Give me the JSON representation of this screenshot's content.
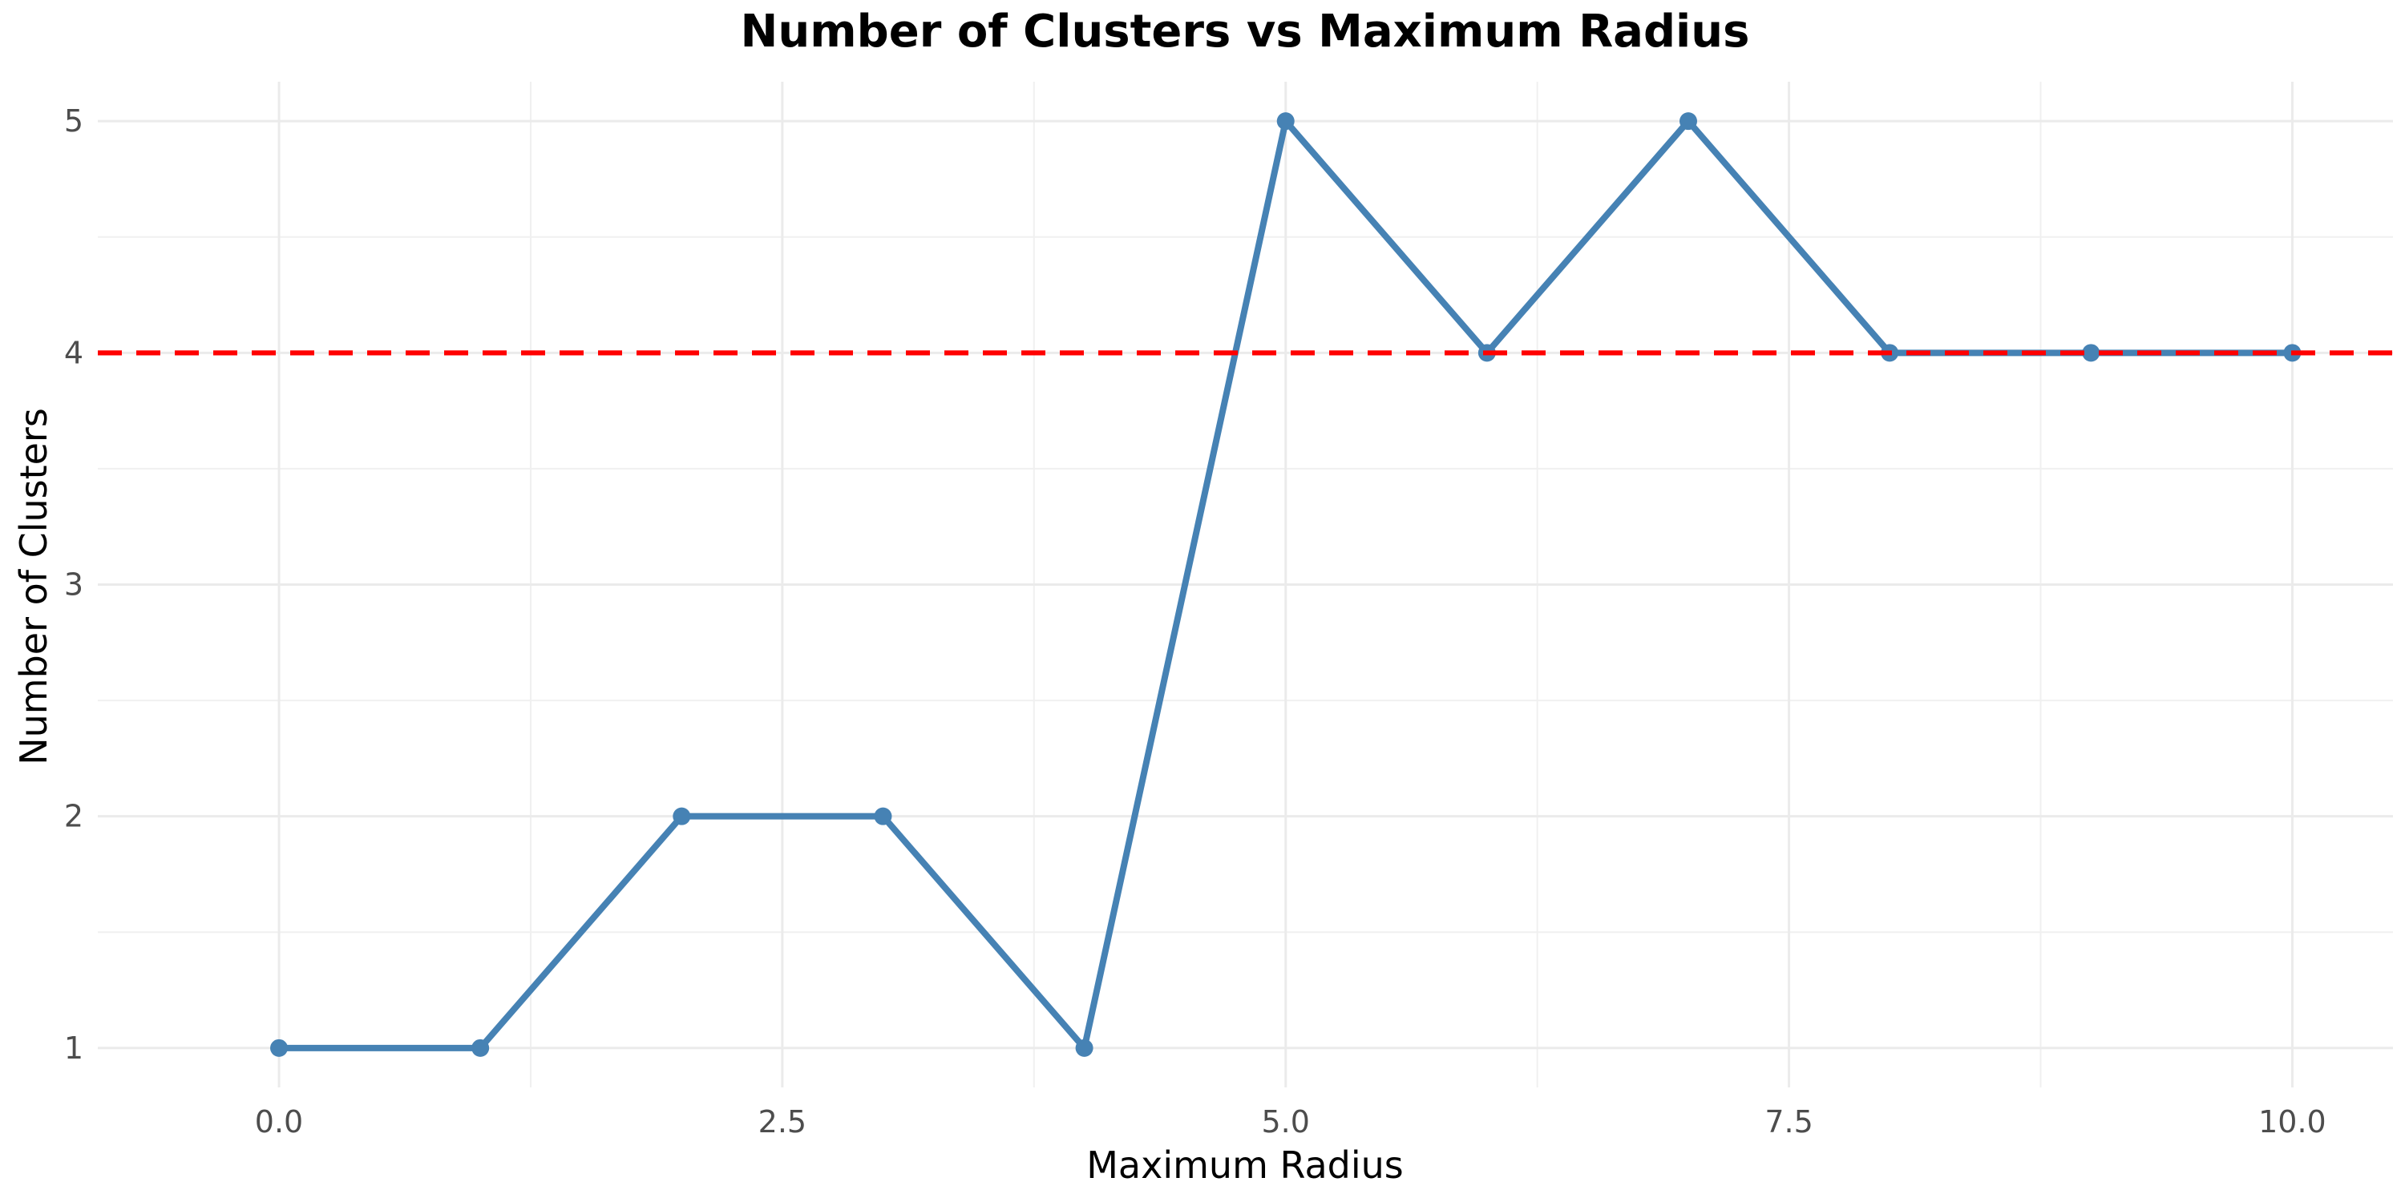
{
  "chart_data": {
    "type": "line",
    "title": "Number of Clusters vs Maximum Radius",
    "xlabel": "Maximum Radius",
    "ylabel": "Number of Clusters",
    "x": [
      0,
      1,
      2,
      3,
      4,
      5,
      6,
      7,
      8,
      9,
      10
    ],
    "series": [
      {
        "values": [
          1,
          1,
          2,
          2,
          1,
          5,
          4,
          5,
          4,
          4,
          4
        ],
        "color": "#4682B4"
      }
    ],
    "reference_line": {
      "y": 4,
      "style": "dashed",
      "color": "#FF0000"
    },
    "xlim": [
      -0.9,
      10.5
    ],
    "ylim": [
      0.83,
      5.17
    ],
    "x_ticks": [
      0,
      2.5,
      5,
      7.5,
      10
    ],
    "x_tick_labels": [
      "0.0",
      "2.5",
      "5.0",
      "7.5",
      "10.0"
    ],
    "y_ticks": [
      1,
      2,
      3,
      4,
      5
    ],
    "y_tick_labels": [
      "1",
      "2",
      "3",
      "4",
      "5"
    ],
    "grid": true,
    "legend": "none"
  }
}
